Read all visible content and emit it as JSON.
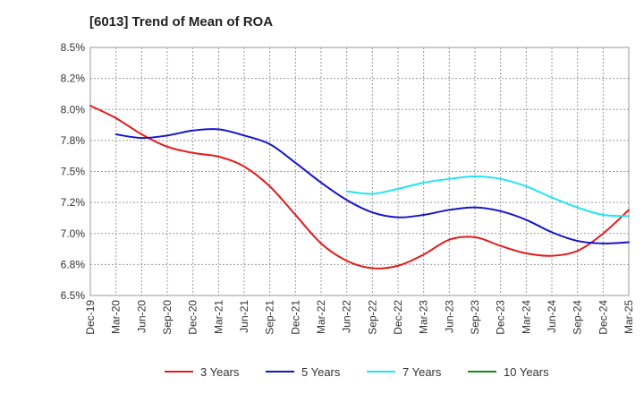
{
  "chart_data": {
    "type": "line",
    "title": "[6013]  Trend of Mean of ROA",
    "xlabel": "",
    "ylabel": "",
    "x_ticks": [
      "Dec-19",
      "Mar-20",
      "Jun-20",
      "Sep-20",
      "Dec-20",
      "Mar-21",
      "Jun-21",
      "Sep-21",
      "Dec-21",
      "Mar-22",
      "Jun-22",
      "Sep-22",
      "Dec-22",
      "Mar-23",
      "Jun-23",
      "Sep-23",
      "Dec-23",
      "Mar-24",
      "Jun-24",
      "Sep-24",
      "Dec-24",
      "Mar-25"
    ],
    "y_ticks": [
      "8.5%",
      "8.2%",
      "8.0%",
      "7.8%",
      "7.5%",
      "7.2%",
      "7.0%",
      "6.8%",
      "6.5%"
    ],
    "ylim": [
      6.5,
      8.5
    ],
    "grid": true,
    "legend_position": "bottom",
    "series": [
      {
        "name": "3 Years",
        "color": "#e31a1c",
        "points": [
          {
            "x": "Dec-19",
            "y": 8.03
          },
          {
            "x": "Mar-20",
            "y": 7.93
          },
          {
            "x": "Jun-20",
            "y": 7.8
          },
          {
            "x": "Sep-20",
            "y": 7.7
          },
          {
            "x": "Dec-20",
            "y": 7.65
          },
          {
            "x": "Mar-21",
            "y": 7.62
          },
          {
            "x": "Jun-21",
            "y": 7.54
          },
          {
            "x": "Sep-21",
            "y": 7.38
          },
          {
            "x": "Dec-21",
            "y": 7.15
          },
          {
            "x": "Mar-22",
            "y": 6.92
          },
          {
            "x": "Jun-22",
            "y": 6.78
          },
          {
            "x": "Sep-22",
            "y": 6.72
          },
          {
            "x": "Dec-22",
            "y": 6.74
          },
          {
            "x": "Mar-23",
            "y": 6.83
          },
          {
            "x": "Jun-23",
            "y": 6.95
          },
          {
            "x": "Sep-23",
            "y": 6.97
          },
          {
            "x": "Dec-23",
            "y": 6.9
          },
          {
            "x": "Mar-24",
            "y": 6.84
          },
          {
            "x": "Jun-24",
            "y": 6.82
          },
          {
            "x": "Sep-24",
            "y": 6.86
          },
          {
            "x": "Dec-24",
            "y": 7.0
          },
          {
            "x": "Mar-25",
            "y": 7.19
          }
        ]
      },
      {
        "name": "5 Years",
        "color": "#1515c8",
        "points": [
          {
            "x": "Mar-20",
            "y": 7.8
          },
          {
            "x": "Jun-20",
            "y": 7.77
          },
          {
            "x": "Sep-20",
            "y": 7.79
          },
          {
            "x": "Dec-20",
            "y": 7.83
          },
          {
            "x": "Mar-21",
            "y": 7.84
          },
          {
            "x": "Jun-21",
            "y": 7.79
          },
          {
            "x": "Sep-21",
            "y": 7.72
          },
          {
            "x": "Dec-21",
            "y": 7.57
          },
          {
            "x": "Mar-22",
            "y": 7.41
          },
          {
            "x": "Jun-22",
            "y": 7.27
          },
          {
            "x": "Sep-22",
            "y": 7.17
          },
          {
            "x": "Dec-22",
            "y": 7.13
          },
          {
            "x": "Mar-23",
            "y": 7.15
          },
          {
            "x": "Jun-23",
            "y": 7.19
          },
          {
            "x": "Sep-23",
            "y": 7.21
          },
          {
            "x": "Dec-23",
            "y": 7.18
          },
          {
            "x": "Mar-24",
            "y": 7.11
          },
          {
            "x": "Jun-24",
            "y": 7.01
          },
          {
            "x": "Sep-24",
            "y": 6.94
          },
          {
            "x": "Dec-24",
            "y": 6.92
          },
          {
            "x": "Mar-25",
            "y": 6.93
          }
        ]
      },
      {
        "name": "7 Years",
        "color": "#22e5f0",
        "points": [
          {
            "x": "Jun-22",
            "y": 7.34
          },
          {
            "x": "Sep-22",
            "y": 7.32
          },
          {
            "x": "Dec-22",
            "y": 7.36
          },
          {
            "x": "Mar-23",
            "y": 7.41
          },
          {
            "x": "Jun-23",
            "y": 7.44
          },
          {
            "x": "Sep-23",
            "y": 7.46
          },
          {
            "x": "Dec-23",
            "y": 7.44
          },
          {
            "x": "Mar-24",
            "y": 7.38
          },
          {
            "x": "Jun-24",
            "y": 7.29
          },
          {
            "x": "Sep-24",
            "y": 7.21
          },
          {
            "x": "Dec-24",
            "y": 7.15
          },
          {
            "x": "Mar-25",
            "y": 7.14
          }
        ]
      },
      {
        "name": "10 Years",
        "color": "#138a13",
        "points": []
      }
    ]
  }
}
